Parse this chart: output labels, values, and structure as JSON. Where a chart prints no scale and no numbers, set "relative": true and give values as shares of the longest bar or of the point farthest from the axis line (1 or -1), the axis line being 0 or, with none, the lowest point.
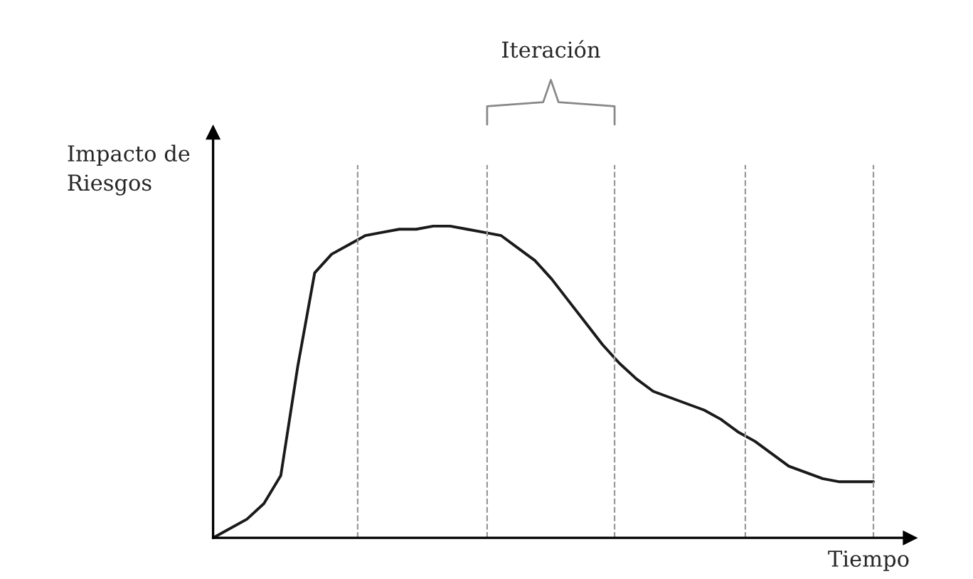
{
  "chart_data": {
    "type": "line",
    "relative": true,
    "xlabel": "Tiempo",
    "ylabel": "Impacto de\nRiesgos",
    "legend": false,
    "marker": "none",
    "line_style": "solid",
    "categories": [
      null,
      null,
      null,
      null,
      null,
      null,
      null,
      null,
      null,
      null,
      null,
      null,
      null,
      null,
      null,
      null,
      null,
      null,
      null,
      null,
      null,
      null,
      null,
      null,
      null,
      null,
      null,
      null,
      null,
      null,
      null,
      null,
      null,
      null,
      null,
      null,
      null,
      null,
      null,
      null
    ],
    "series": [
      {
        "color": "#1a1a1a",
        "values": [
          0,
          0.03,
          0.06,
          0.11,
          0.2,
          0.55,
          0.85,
          0.91,
          0.94,
          0.97,
          0.98,
          0.99,
          0.99,
          1,
          1,
          0.99,
          0.98,
          0.97,
          0.93,
          0.89,
          0.83,
          0.76,
          0.69,
          0.62,
          0.56,
          0.51,
          0.47,
          0.45,
          0.43,
          0.41,
          0.38,
          0.34,
          0.31,
          0.27,
          0.23,
          0.21,
          0.19,
          0.18,
          0.18,
          0.18
        ]
      }
    ],
    "annotations": [
      "Iteración"
    ]
  }
}
